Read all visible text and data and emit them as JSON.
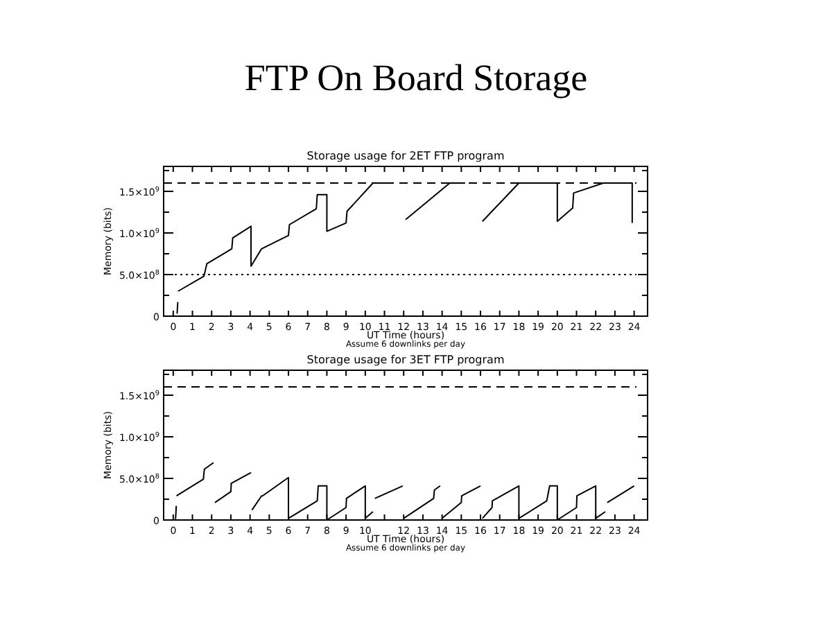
{
  "chart_data": [
    {
      "type": "line",
      "title": "FTP On Board Storage",
      "subtitle": "Storage usage for 2ET FTP program",
      "xlabel": "UT Time (hours)",
      "ylabel": "Memory (bits)",
      "annotations": [
        "Assume 6 downlinks per day"
      ],
      "xlim": [
        -0.5,
        24.7
      ],
      "ylim": [
        0,
        1800000000.0
      ],
      "xticks": [
        0,
        1,
        2,
        3,
        4,
        5,
        6,
        7,
        8,
        9,
        10,
        11,
        12,
        13,
        14,
        15,
        16,
        17,
        18,
        19,
        20,
        21,
        22,
        23,
        24
      ],
      "yticks": [
        {
          "value": 0,
          "label": "0"
        },
        {
          "value": 250000000.0,
          "label": null
        },
        {
          "value": 500000000.0,
          "label": "5.0×10$^{8}$"
        },
        {
          "value": 750000000.0,
          "label": null
        },
        {
          "value": 1000000000.0,
          "label": "1.0×10$^{9}$"
        },
        {
          "value": 1250000000.0,
          "label": null
        },
        {
          "value": 1500000000.0,
          "label": "1.5×10$^{9}$"
        },
        {
          "value": 1750000000.0,
          "label": null
        }
      ],
      "ref_lines": [
        {
          "axis": "y",
          "value": 1600000000.0,
          "line_style": "dashed"
        },
        {
          "axis": "y",
          "value": 500000000.0,
          "line_style": "dotted"
        }
      ],
      "series": [
        {
          "color": "#000000",
          "x": [
            0.2,
            0.24
          ],
          "values": [
            30000000.0,
            170000000.0
          ]
        },
        {
          "color": "#000000",
          "x": [
            0.25,
            1.6,
            1.75,
            3.05,
            3.1,
            4.05,
            4.05,
            4.6,
            6.0,
            6.05,
            7.45,
            7.5,
            8.0,
            8.0,
            9.0,
            9.05,
            10.4,
            11.2
          ],
          "values": [
            300000000.0,
            480000000.0,
            630000000.0,
            810000000.0,
            940000000.0,
            1080000000.0,
            600000000.0,
            810000000.0,
            970000000.0,
            1100000000.0,
            1290000000.0,
            1460000000.0,
            1460000000.0,
            1020000000.0,
            1120000000.0,
            1260000000.0,
            1600000000.0,
            1600000000.0
          ]
        },
        {
          "color": "#000000",
          "x": [
            12.1,
            14.4,
            15.2
          ],
          "values": [
            1160000000.0,
            1600000000.0,
            1600000000.0
          ]
        },
        {
          "color": "#000000",
          "x": [
            16.1,
            18.0,
            20.0,
            20.0,
            20.8,
            20.85,
            22.4,
            23.9,
            23.9
          ],
          "values": [
            1140000000.0,
            1600000000.0,
            1600000000.0,
            1140000000.0,
            1300000000.0,
            1480000000.0,
            1600000000.0,
            1600000000.0,
            1120000000.0
          ]
        }
      ]
    },
    {
      "type": "line",
      "title": "Storage usage for 3ET FTP program",
      "xlabel": "UT Time (hours)",
      "ylabel": "Memory (bits)",
      "annotations": [
        "Assume 6 downlinks per day"
      ],
      "xlim": [
        -0.5,
        24.7
      ],
      "ylim": [
        0,
        1800000000.0
      ],
      "xticks": [
        0,
        1,
        2,
        3,
        4,
        5,
        6,
        7,
        8,
        9,
        10,
        {
          "value": 11,
          "label": null
        },
        12,
        13,
        14,
        15,
        16,
        17,
        18,
        19,
        20,
        21,
        22,
        23,
        24
      ],
      "yticks": [
        {
          "value": 0,
          "label": "0"
        },
        {
          "value": 250000000.0,
          "label": null
        },
        {
          "value": 500000000.0,
          "label": "5.0×10$^{8}$"
        },
        {
          "value": 750000000.0,
          "label": null
        },
        {
          "value": 1000000000.0,
          "label": "1.0×10$^{9}$"
        },
        {
          "value": 1250000000.0,
          "label": null
        },
        {
          "value": 1500000000.0,
          "label": "1.5×10$^{9}$"
        },
        {
          "value": 1750000000.0,
          "label": null
        }
      ],
      "ref_lines": [
        {
          "axis": "y",
          "value": 1600000000.0,
          "line_style": "dashed"
        }
      ],
      "series": [
        {
          "color": "#000000",
          "x": [
            0.12,
            0.16
          ],
          "values": [
            10000000.0,
            170000000.0
          ]
        },
        {
          "color": "#000000",
          "x": [
            0.17,
            1.57,
            1.62,
            2.1
          ],
          "values": [
            290000000.0,
            490000000.0,
            610000000.0,
            690000000.0
          ]
        },
        {
          "color": "#000000",
          "x": [
            2.17,
            3.0,
            3.02,
            4.05
          ],
          "values": [
            210000000.0,
            340000000.0,
            440000000.0,
            570000000.0
          ]
        },
        {
          "color": "#000000",
          "x": [
            4.1,
            4.6,
            4.65,
            6.0,
            6.0,
            7.5,
            7.55,
            8.0,
            8.0,
            9.0,
            9.02,
            10.0,
            10.0,
            10.4
          ],
          "values": [
            120000000.0,
            290000000.0,
            290000000.0,
            510000000.0,
            20000000.0,
            230000000.0,
            410000000.0,
            410000000.0,
            0,
            150000000.0,
            260000000.0,
            410000000.0,
            20000000.0,
            100000000.0
          ]
        },
        {
          "color": "#000000",
          "x": [
            10.5,
            11.95
          ],
          "values": [
            260000000.0,
            410000000.0
          ]
        },
        {
          "color": "#000000",
          "x": [
            12.0,
            13.56,
            13.6,
            13.9
          ],
          "values": [
            20000000.0,
            260000000.0,
            360000000.0,
            410000000.0
          ]
        },
        {
          "color": "#000000",
          "x": [
            14.0,
            15.0,
            15.02,
            16.0
          ],
          "values": [
            20000000.0,
            210000000.0,
            290000000.0,
            410000000.0
          ]
        },
        {
          "color": "#000000",
          "x": [
            16.1,
            16.6,
            16.62,
            18.0,
            18.0,
            19.45,
            19.6,
            20.0,
            20.0,
            21.0,
            21.02,
            22.0,
            22.0,
            22.5
          ],
          "values": [
            20000000.0,
            150000000.0,
            230000000.0,
            410000000.0,
            20000000.0,
            230000000.0,
            410000000.0,
            410000000.0,
            0,
            150000000.0,
            290000000.0,
            410000000.0,
            20000000.0,
            100000000.0
          ]
        },
        {
          "color": "#000000",
          "x": [
            22.6,
            24.0
          ],
          "values": [
            210000000.0,
            410000000.0
          ]
        }
      ]
    }
  ]
}
